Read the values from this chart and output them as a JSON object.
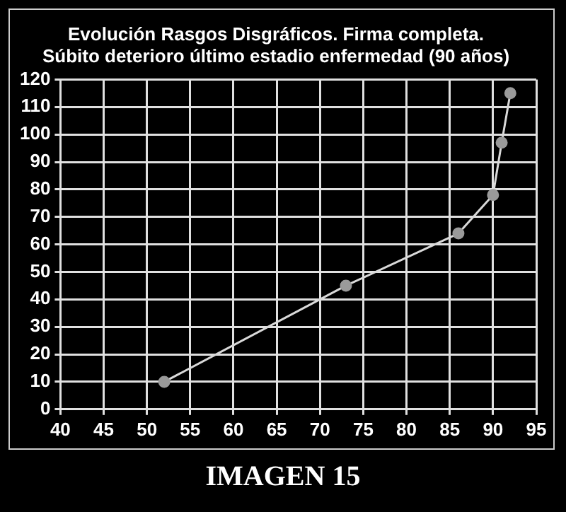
{
  "chart_data": {
    "type": "line",
    "title": [
      "Evolución Rasgos Disgráficos. Firma completa.",
      "Súbito deterioro último estadio enfermedad (90 años)"
    ],
    "x": [
      52,
      73,
      86,
      90,
      91,
      92
    ],
    "series": [
      {
        "color": "#d9d9d9",
        "values": [
          10,
          45,
          64,
          78,
          97,
          115
        ]
      }
    ],
    "xlim": [
      40,
      95
    ],
    "xticks": [
      40,
      45,
      50,
      55,
      60,
      65,
      70,
      75,
      80,
      85,
      90,
      95
    ],
    "ylim": [
      0,
      120
    ],
    "yticks": [
      0,
      10,
      20,
      30,
      40,
      50,
      60,
      70,
      80,
      90,
      100,
      110,
      120
    ],
    "grid": true,
    "marker": "circle",
    "line_style": "solid",
    "legend": false,
    "annotations": [
      "IMAGEN 15"
    ]
  }
}
